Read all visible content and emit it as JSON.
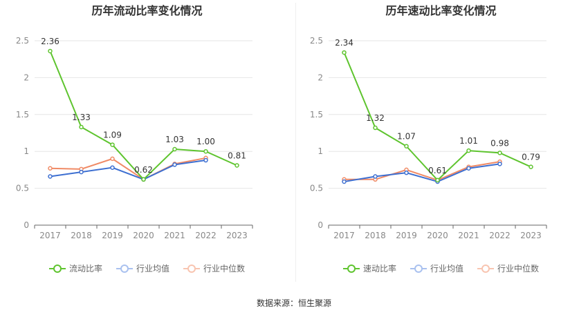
{
  "source_text": "数据来源：恒生聚源",
  "chart_data": [
    {
      "type": "line",
      "title": "历年流动比率变化情况",
      "categories": [
        "2017",
        "2018",
        "2019",
        "2020",
        "2021",
        "2022",
        "2023"
      ],
      "ylim": [
        0,
        2.5
      ],
      "yticks": [
        "0",
        "0.5",
        "1",
        "1.5",
        "2",
        "2.5"
      ],
      "grid": true,
      "legend_position": "bottom",
      "series": [
        {
          "name": "流动比率",
          "color": "#5ec42e",
          "values": [
            2.36,
            1.33,
            1.09,
            0.62,
            1.03,
            1.0,
            0.81
          ],
          "labels": [
            "2.36",
            "1.33",
            "1.09",
            "0.62",
            "1.03",
            "1.00",
            "0.81"
          ]
        },
        {
          "name": "行业均值",
          "color": "#3d6fd1",
          "values": [
            0.66,
            0.72,
            0.78,
            0.62,
            0.82,
            0.88,
            null
          ]
        },
        {
          "name": "行业中位数",
          "color": "#f08a65",
          "values": [
            0.77,
            0.76,
            0.9,
            0.62,
            0.83,
            0.91,
            null
          ]
        }
      ]
    },
    {
      "type": "line",
      "title": "历年速动比率变化情况",
      "categories": [
        "2017",
        "2018",
        "2019",
        "2020",
        "2021",
        "2022",
        "2023"
      ],
      "ylim": [
        0,
        2.5
      ],
      "yticks": [
        "0",
        "0.5",
        "1",
        "1.5",
        "2",
        "2.5"
      ],
      "grid": true,
      "legend_position": "bottom",
      "series": [
        {
          "name": "速动比率",
          "color": "#5ec42e",
          "values": [
            2.34,
            1.32,
            1.07,
            0.61,
            1.01,
            0.98,
            0.79
          ],
          "labels": [
            "2.34",
            "1.32",
            "1.07",
            "0.61",
            "1.01",
            "0.98",
            "0.79"
          ]
        },
        {
          "name": "行业均值",
          "color": "#3d6fd1",
          "values": [
            0.59,
            0.66,
            0.71,
            0.59,
            0.77,
            0.83,
            null
          ]
        },
        {
          "name": "行业中位数",
          "color": "#f08a65",
          "values": [
            0.62,
            0.62,
            0.75,
            0.61,
            0.79,
            0.86,
            null
          ]
        }
      ]
    }
  ]
}
